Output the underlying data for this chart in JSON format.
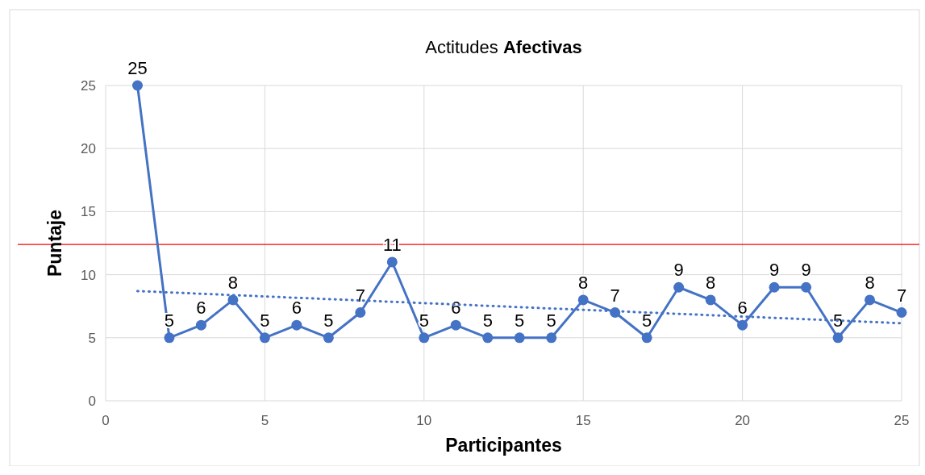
{
  "chart_data": {
    "type": "line",
    "title": "Actitudes Afectivas",
    "xlabel": "Participantes",
    "ylabel": "Puntaje",
    "x": [
      1,
      2,
      3,
      4,
      5,
      6,
      7,
      8,
      9,
      10,
      11,
      12,
      13,
      14,
      15,
      16,
      17,
      18,
      19,
      20,
      21,
      22,
      23,
      24,
      25
    ],
    "series": [
      {
        "color": "#4472c4",
        "values": [
          25,
          5,
          6,
          8,
          5,
          6,
          5,
          7,
          11,
          5,
          6,
          5,
          5,
          5,
          8,
          7,
          5,
          9,
          8,
          6,
          9,
          9,
          5,
          8,
          7
        ],
        "marker": "circle",
        "line_style": "solid",
        "data_labels": true
      },
      {
        "type": "line",
        "x": [
          1,
          25
        ],
        "color": "#4472c4",
        "values": [
          8.7,
          6.15
        ],
        "marker": "none",
        "line_style": "dotted"
      }
    ],
    "xlim": [
      0,
      25
    ],
    "xticks": [
      0,
      5,
      10,
      15,
      20,
      25
    ],
    "ylim": [
      0,
      25
    ],
    "yticks": [
      0,
      5,
      10,
      15,
      20,
      25
    ],
    "grid": true,
    "ref_lines": [
      {
        "axis": "y",
        "value": 12.4,
        "color": "#ff0000",
        "line_style": "solid"
      }
    ]
  }
}
